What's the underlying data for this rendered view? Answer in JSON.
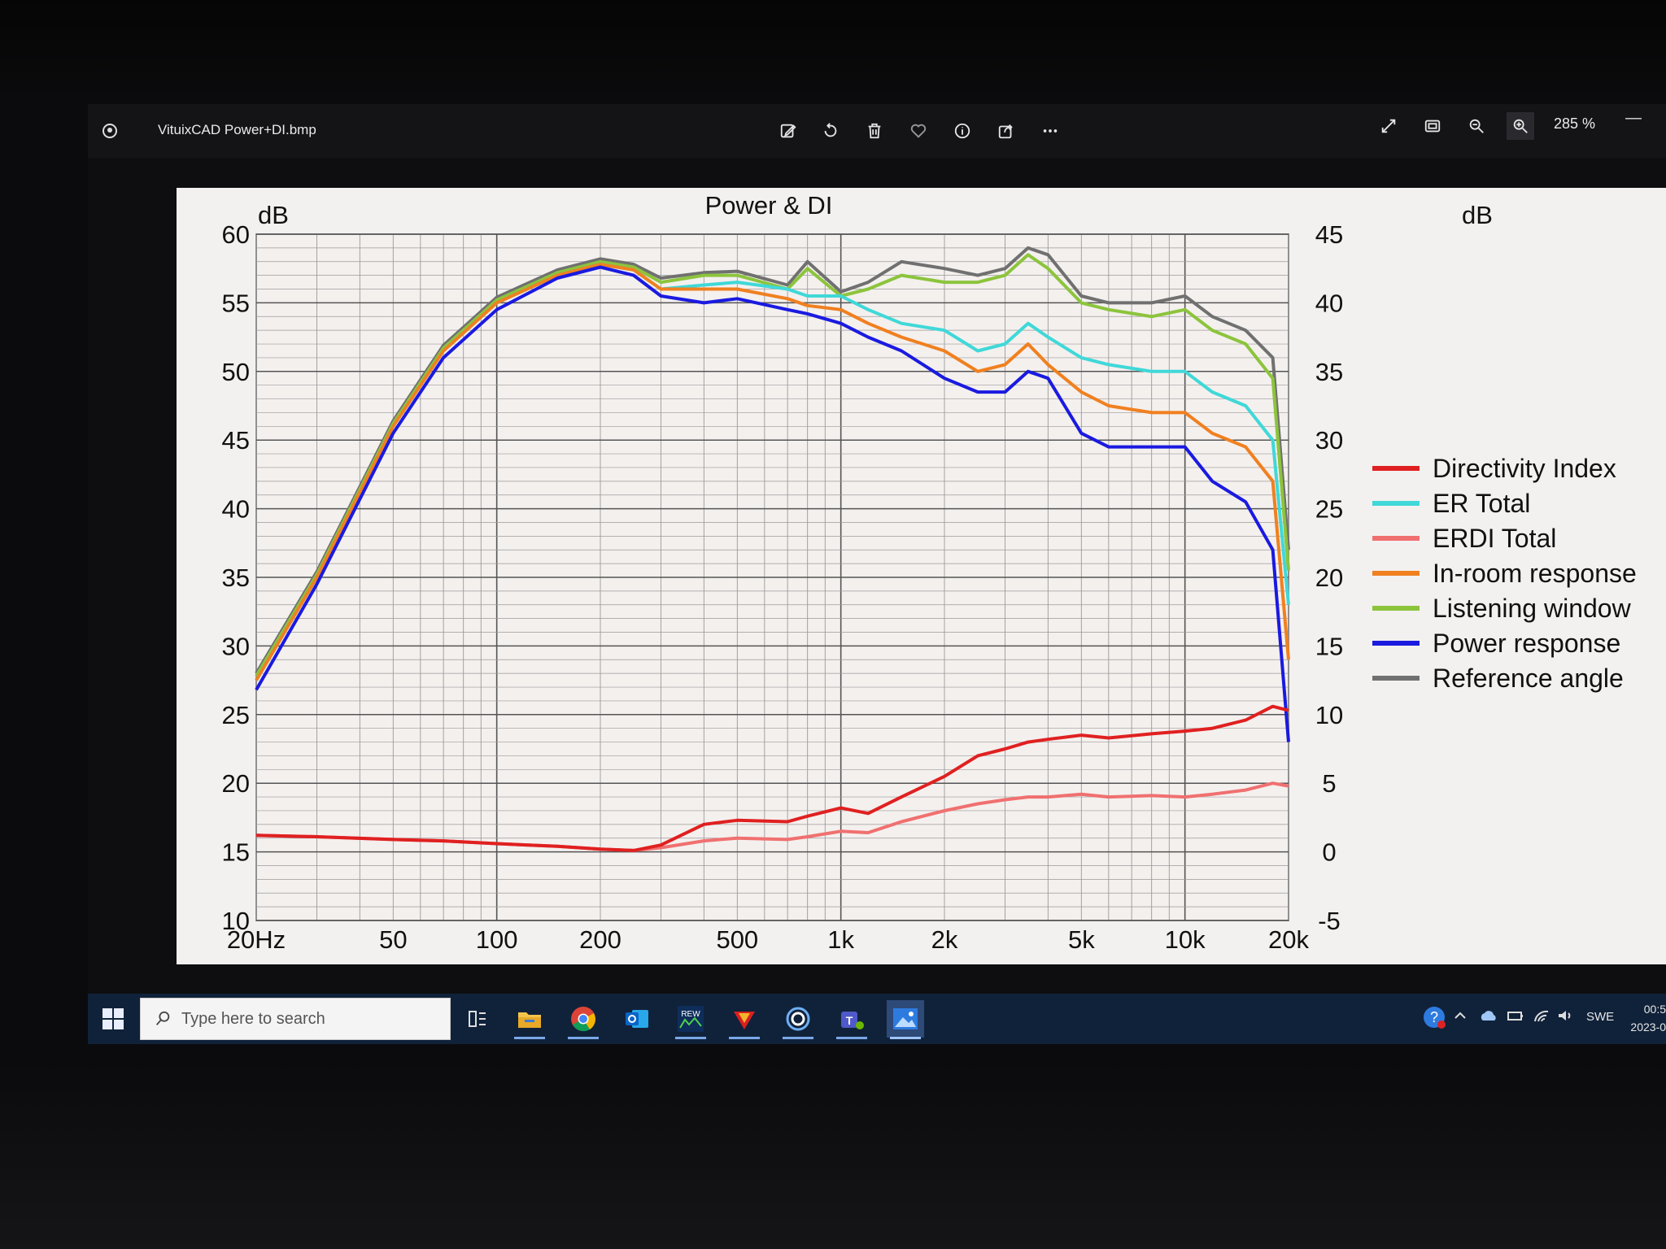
{
  "window": {
    "title": "VituixCAD Power+DI.bmp",
    "zoom_level": "285 %"
  },
  "toolbar": {
    "icons": [
      "edit-icon",
      "rotate-icon",
      "delete-icon",
      "favorite-icon",
      "info-icon",
      "share-icon",
      "more-icon"
    ],
    "right_icons": [
      "expand-icon",
      "fit-icon",
      "zoom-out-icon",
      "zoom-in-icon"
    ]
  },
  "chart_data": {
    "type": "line",
    "title": "Power & DI",
    "ylabel_left": "dB",
    "ylabel_right": "dB",
    "x_scale": "log",
    "xlim": [
      20,
      20000
    ],
    "ylim_left": [
      10,
      60
    ],
    "ylim_right": [
      -5,
      45
    ],
    "x_ticks": [
      "20Hz",
      "50",
      "100",
      "200",
      "500",
      "1k",
      "2k",
      "5k",
      "10k",
      "20k"
    ],
    "x_tick_values": [
      20,
      50,
      100,
      200,
      500,
      1000,
      2000,
      5000,
      10000,
      20000
    ],
    "y_ticks_left": [
      "60",
      "55",
      "50",
      "45",
      "40",
      "35",
      "30",
      "25",
      "20",
      "15",
      "10"
    ],
    "y_ticks_right": [
      "45",
      "40",
      "35",
      "30",
      "25",
      "20",
      "15",
      "10",
      "5",
      "0",
      "-5"
    ],
    "grid": true,
    "legend_position": "right",
    "legend": [
      "Directivity Index",
      "ER Total",
      "ERDI Total",
      "In-room response",
      "Listening window",
      "Power response",
      "Reference angle"
    ],
    "x": [
      20,
      30,
      50,
      70,
      100,
      150,
      200,
      250,
      300,
      400,
      500,
      700,
      800,
      1000,
      1200,
      1500,
      2000,
      2500,
      3000,
      3500,
      4000,
      5000,
      6000,
      8000,
      10000,
      12000,
      15000,
      18000,
      20000
    ],
    "series": [
      {
        "name": "Directivity Index",
        "axis": "right",
        "color": "#e02020",
        "values": [
          1.2,
          1.1,
          0.9,
          0.8,
          0.6,
          0.4,
          0.2,
          0.1,
          0.5,
          2.0,
          2.3,
          2.2,
          2.6,
          3.2,
          2.8,
          4.0,
          5.5,
          7.0,
          7.5,
          8.0,
          8.2,
          8.5,
          8.3,
          8.6,
          8.8,
          9.0,
          9.6,
          10.6,
          10.3
        ]
      },
      {
        "name": "ER Total",
        "axis": "left",
        "color": "#40d8d8",
        "values": [
          27.5,
          35,
          46,
          51.5,
          55,
          57,
          57.8,
          57.4,
          56.0,
          56.3,
          56.5,
          56.0,
          55.5,
          55.5,
          54.5,
          53.5,
          53.0,
          51.5,
          52.0,
          53.5,
          52.5,
          51.0,
          50.5,
          50.0,
          50.0,
          48.5,
          47.5,
          45.0,
          33.0
        ]
      },
      {
        "name": "ERDI Total",
        "axis": "right",
        "color": "#f07070",
        "values": [
          1.2,
          1.1,
          0.9,
          0.8,
          0.6,
          0.4,
          0.2,
          0.1,
          0.3,
          0.8,
          1.0,
          0.9,
          1.1,
          1.5,
          1.4,
          2.2,
          3.0,
          3.5,
          3.8,
          4.0,
          4.0,
          4.2,
          4.0,
          4.1,
          4.0,
          4.2,
          4.5,
          5.0,
          4.8
        ]
      },
      {
        "name": "In-room response",
        "axis": "left",
        "color": "#f08020",
        "values": [
          27.5,
          35,
          46,
          51.5,
          55,
          57,
          57.8,
          57.4,
          56.0,
          56.0,
          56.0,
          55.3,
          54.8,
          54.5,
          53.5,
          52.5,
          51.5,
          50.0,
          50.5,
          52.0,
          50.5,
          48.5,
          47.5,
          47.0,
          47.0,
          45.5,
          44.5,
          42.0,
          29.0
        ]
      },
      {
        "name": "Listening window",
        "axis": "left",
        "color": "#8cc43c",
        "values": [
          27.8,
          35.2,
          46.2,
          51.7,
          55.2,
          57.2,
          58.0,
          57.6,
          56.5,
          57.0,
          57.0,
          56.0,
          57.5,
          55.5,
          56.0,
          57.0,
          56.5,
          56.5,
          57.0,
          58.5,
          57.5,
          55.0,
          54.5,
          54.0,
          54.5,
          53.0,
          52.0,
          49.5,
          35.5
        ]
      },
      {
        "name": "Power response",
        "axis": "left",
        "color": "#1a1ae0",
        "values": [
          26.8,
          34.5,
          45.5,
          51.0,
          54.5,
          56.8,
          57.6,
          57.0,
          55.5,
          55.0,
          55.3,
          54.5,
          54.2,
          53.5,
          52.5,
          51.5,
          49.5,
          48.5,
          48.5,
          50.0,
          49.5,
          45.5,
          44.5,
          44.5,
          44.5,
          42.0,
          40.5,
          37.0,
          23.0
        ]
      },
      {
        "name": "Reference angle",
        "axis": "left",
        "color": "#707070",
        "values": [
          28.0,
          35.4,
          46.4,
          51.9,
          55.4,
          57.4,
          58.2,
          57.8,
          56.8,
          57.2,
          57.3,
          56.3,
          58.0,
          55.8,
          56.5,
          58.0,
          57.5,
          57.0,
          57.5,
          59.0,
          58.5,
          55.5,
          55.0,
          55.0,
          55.5,
          54.0,
          53.0,
          51.0,
          37.0
        ]
      }
    ]
  },
  "taskbar": {
    "search_placeholder": "Type here to search",
    "apps": [
      "task-view-icon",
      "file-explorer-icon",
      "chrome-icon",
      "outlook-icon",
      "rew-icon",
      "app-red-icon",
      "app-blue-icon",
      "teams-icon",
      "photos-icon"
    ],
    "language": "SWE",
    "time": "00:5",
    "date": "2023-0"
  }
}
